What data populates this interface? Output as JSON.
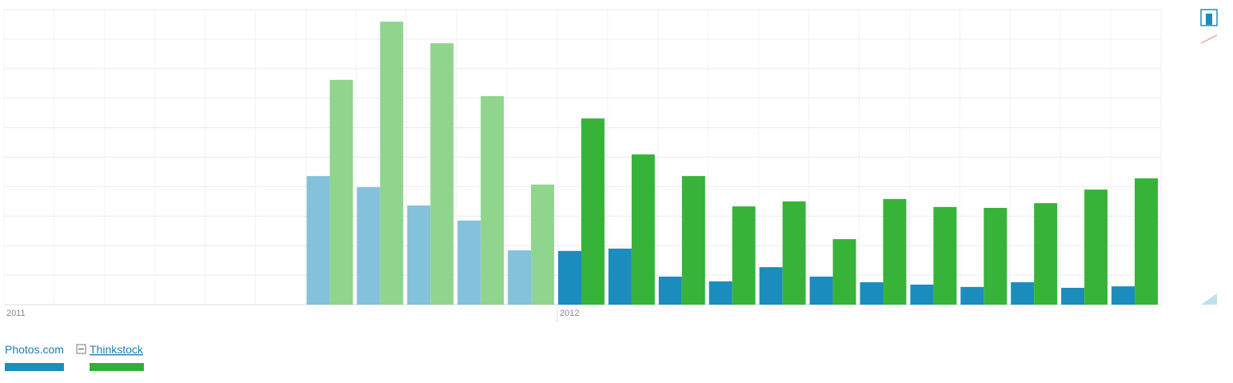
{
  "chart_data": {
    "type": "bar",
    "categories": [
      "2011",
      null,
      null,
      null,
      null,
      null,
      null,
      null,
      null,
      null,
      null,
      "2012",
      null,
      null,
      null,
      null,
      null,
      null,
      null,
      null,
      null,
      null,
      null
    ],
    "series": [
      {
        "name": "Photos.com",
        "color": "#1b8dbd",
        "colors": [
          "#84c1da",
          "#84c1da",
          "#84c1da",
          "#84c1da",
          "#84c1da",
          "#84c1da",
          "#84c1da",
          "#84c1da",
          "#84c1da",
          "#84c1da",
          "#84c1da",
          "#1b8dbd",
          "#1b8dbd",
          "#1b8dbd",
          "#1b8dbd",
          "#1b8dbd",
          "#1b8dbd",
          "#1b8dbd",
          "#1b8dbd",
          "#1b8dbd",
          "#1b8dbd",
          "#1b8dbd",
          "#1b8dbd"
        ],
        "values": [
          null,
          null,
          null,
          null,
          null,
          null,
          43.6,
          39.8,
          33.6,
          28.5,
          18.4,
          18.2,
          19,
          9.5,
          7.9,
          12.7,
          9.5,
          7.6,
          6.8,
          6,
          7.6,
          5.7,
          6.2
        ]
      },
      {
        "name": "Thinkstock",
        "color": "#32b036",
        "colors": [
          "#90d58e",
          "#90d58e",
          "#90d58e",
          "#90d58e",
          "#90d58e",
          "#90d58e",
          "#90d58e",
          "#90d58e",
          "#90d58e",
          "#90d58e",
          "#90d58e",
          "#37b33a",
          "#37b33a",
          "#37b33a",
          "#37b33a",
          "#37b33a",
          "#37b33a",
          "#37b33a",
          "#37b33a",
          "#37b33a",
          "#37b33a",
          "#37b33a",
          "#37b33a"
        ],
        "values": [
          null,
          null,
          null,
          null,
          null,
          null,
          76.2,
          95.9,
          88.6,
          70.7,
          40.7,
          63.1,
          50.9,
          43.6,
          33.3,
          35,
          22.2,
          35.8,
          33.1,
          32.8,
          34.4,
          39,
          42.8
        ]
      }
    ],
    "ylim": [
      0,
      100
    ],
    "yticks": [
      0,
      10,
      20,
      30,
      40,
      50,
      60,
      70,
      80,
      90,
      100
    ],
    "grid": true
  }
}
